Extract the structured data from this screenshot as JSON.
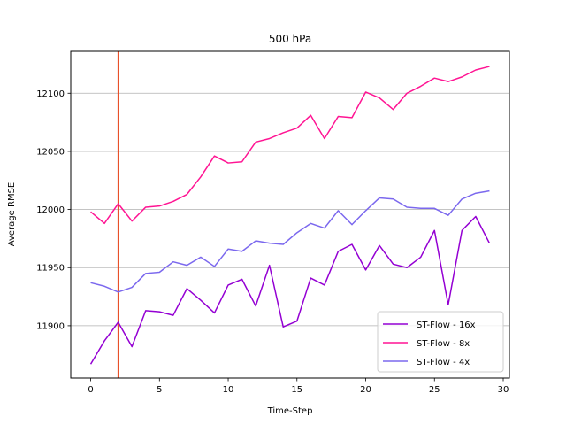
{
  "chart_data": {
    "type": "line",
    "title": "500 hPa",
    "xlabel": "Time-Step",
    "ylabel": "Average RMSE",
    "xlim": [
      -1.45,
      30.45
    ],
    "ylim": [
      11855,
      12136
    ],
    "xticks": [
      0,
      5,
      10,
      15,
      20,
      25,
      30
    ],
    "yticks": [
      11900,
      11950,
      12000,
      12050,
      12100
    ],
    "grid": "horizontal",
    "legend_position": "lower-right",
    "vline": {
      "x": 2,
      "color": "#e8512a"
    },
    "x": [
      0,
      1,
      2,
      3,
      4,
      5,
      6,
      7,
      8,
      9,
      10,
      11,
      12,
      13,
      14,
      15,
      16,
      17,
      18,
      19,
      20,
      21,
      22,
      23,
      24,
      25,
      26,
      27,
      28,
      29
    ],
    "series": [
      {
        "name": "ST-Flow - 16x",
        "color": "#9400d3",
        "values": [
          11867,
          11887,
          11903,
          11882,
          11913,
          11912,
          11909,
          11932,
          11922,
          11911,
          11935,
          11940,
          11917,
          11952,
          11899,
          11904,
          11941,
          11935,
          11964,
          11970,
          11948,
          11969,
          11953,
          11950,
          11959,
          11982,
          11918,
          11982,
          11994,
          11971
        ]
      },
      {
        "name": "ST-Flow - 8x",
        "color": "#ff1493",
        "values": [
          11998,
          11988,
          12005,
          11990,
          12002,
          12003,
          12007,
          12013,
          12028,
          12046,
          12040,
          12041,
          12058,
          12061,
          12066,
          12070,
          12081,
          12061,
          12080,
          12079,
          12101,
          12096,
          12086,
          12100,
          12106,
          12113,
          12110,
          12114,
          12120,
          12123
        ]
      },
      {
        "name": "ST-Flow - 4x",
        "color": "#7b68ee",
        "values": [
          11937,
          11934,
          11929,
          11933,
          11945,
          11946,
          11955,
          11952,
          11959,
          11951,
          11966,
          11964,
          11973,
          11971,
          11970,
          11980,
          11988,
          11984,
          11999,
          11987,
          11999,
          12010,
          12009,
          12002,
          12001,
          12001,
          11995,
          12009,
          12014,
          12016
        ]
      }
    ]
  }
}
